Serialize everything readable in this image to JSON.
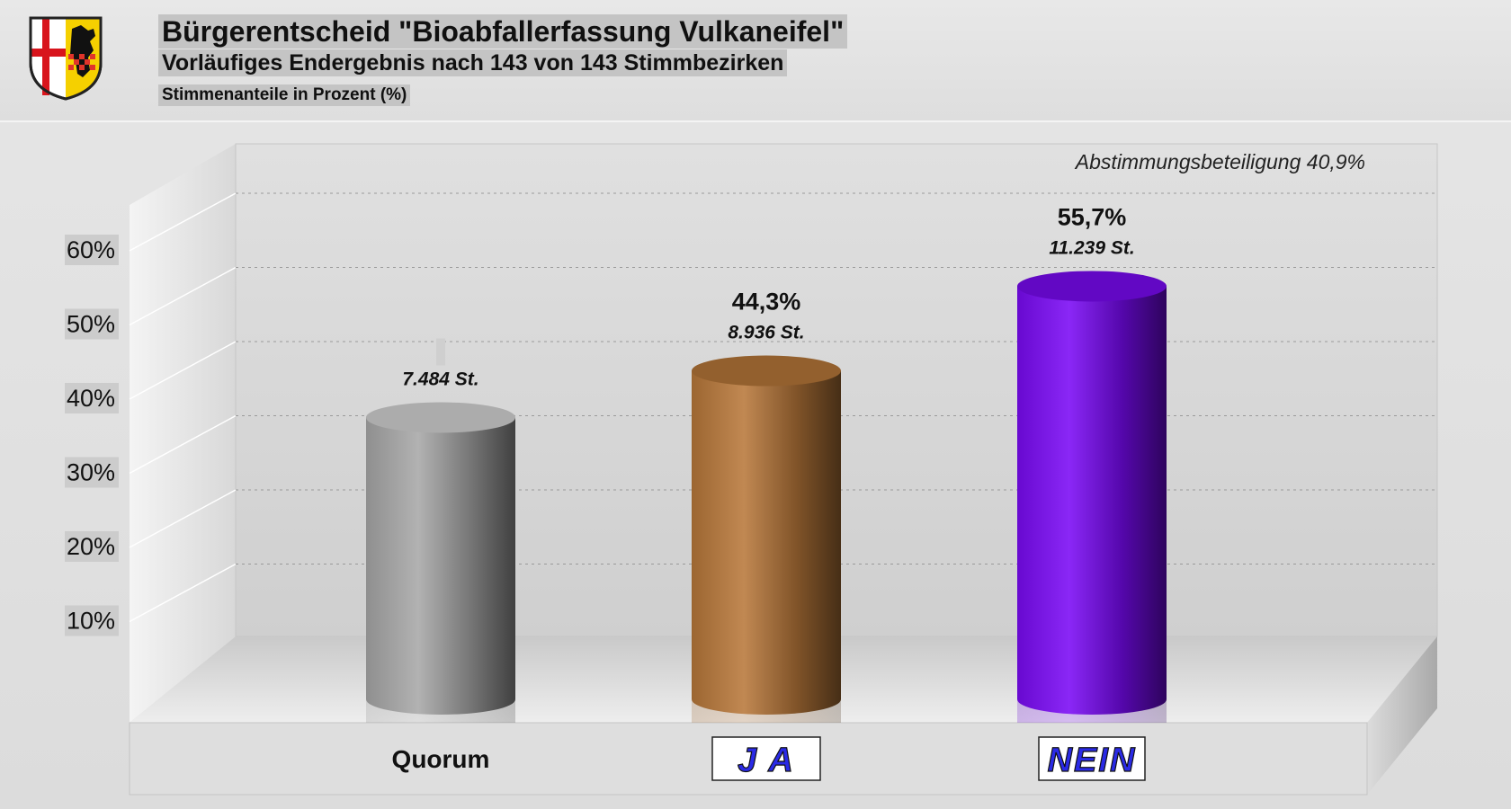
{
  "header": {
    "title": "Bürgerentscheid \"Bioabfallerfassung Vulkaneifel\"",
    "subtitle": "Vorläufiges Endergebnis nach 143 von 143 Stimmbezirken",
    "unit_note": "Stimmenanteile in Prozent (%)",
    "crest_icon": "district-coat-of-arms-icon"
  },
  "chart_data": {
    "type": "bar",
    "style": "3d-cylinder",
    "categories": [
      "Quorum",
      "J A",
      "NEIN"
    ],
    "values": [
      38.0,
      44.3,
      55.7
    ],
    "vote_labels": [
      "7.484 St.",
      "8.936 St.",
      "11.239 St."
    ],
    "percent_labels": [
      "",
      "44,3%",
      "55,7%"
    ],
    "colors": [
      "#a8a8a8",
      "#b8783a",
      "#7a0af5"
    ],
    "y_ticks": [
      "10%",
      "20%",
      "30%",
      "40%",
      "50%",
      "60%"
    ],
    "ylim": [
      0,
      70
    ],
    "grid": true,
    "annotation": "Abstimmungsbeteiligung 40,9%"
  }
}
